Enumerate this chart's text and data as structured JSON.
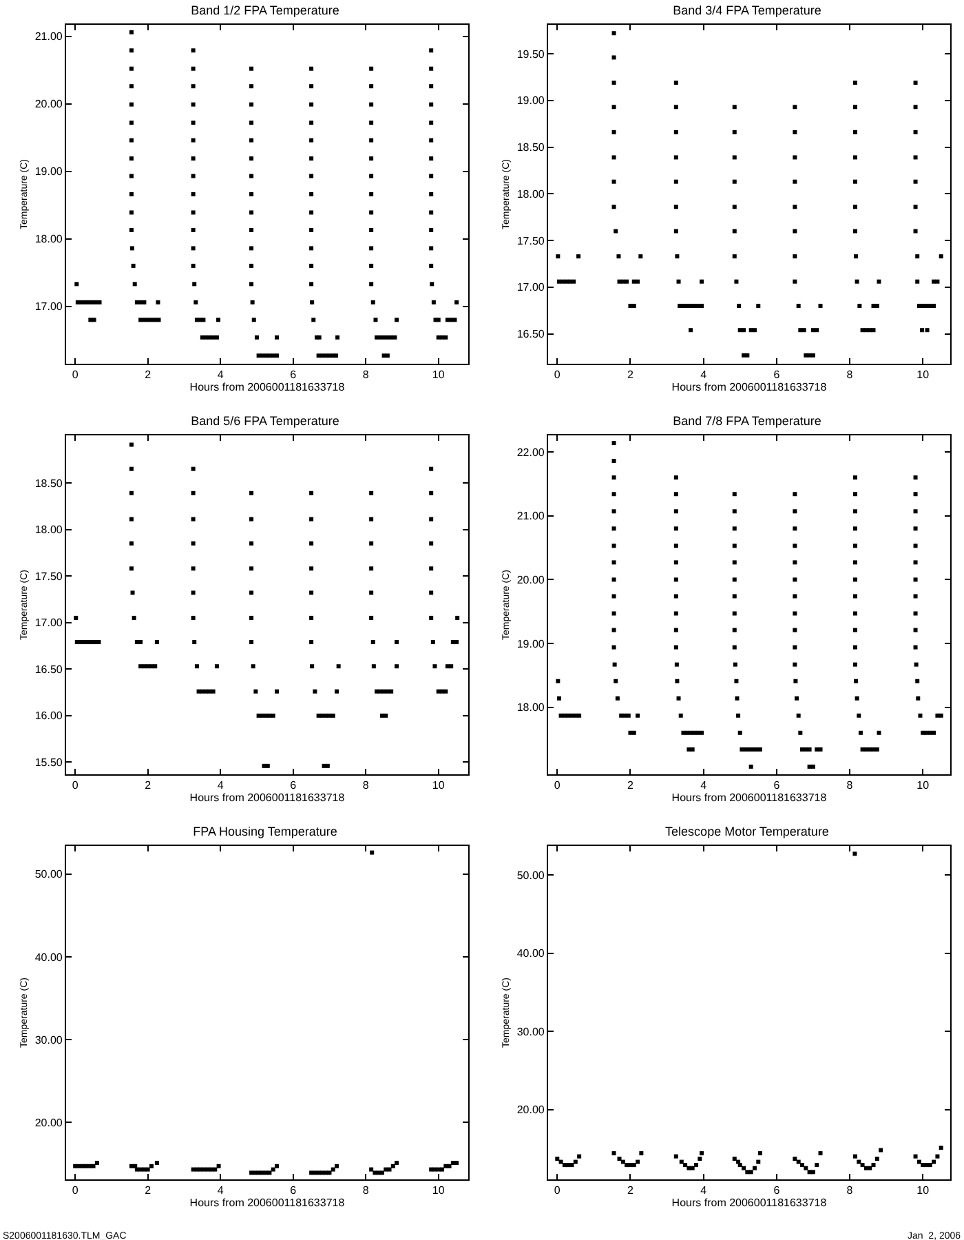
{
  "chart_data": [
    {
      "type": "scatter",
      "title": "Band 1/2 FPA Temperature",
      "xlabel": "Hours from 2006001181633718",
      "ylabel": "Temperature (C)",
      "marker": "square",
      "xlim": [
        -0.25,
        10.82
      ],
      "ylim": [
        16.15,
        21.17
      ],
      "xticks": [
        0,
        2,
        4,
        6,
        8,
        10
      ],
      "yticks": [
        {
          "value": 17,
          "label": "17.00"
        },
        {
          "value": 18,
          "label": "18.00"
        },
        {
          "value": 19,
          "label": "19.00"
        },
        {
          "value": 20,
          "label": "20.00"
        },
        {
          "value": 21,
          "label": "21.00"
        }
      ],
      "series": [
        {
          "color": "#000000",
          "x": [
            0.04,
            0.07,
            0.17,
            0.27,
            0.37,
            0.47,
            0.57,
            0.67,
            0.42,
            0.52
          ],
          "values": [
            17.33,
            17.06,
            17.06,
            17.06,
            17.06,
            17.06,
            17.06,
            17.06,
            16.8,
            16.8
          ]
        },
        {
          "color": "#000000",
          "x": [
            1.55,
            1.55,
            1.55,
            1.55,
            1.55,
            1.55,
            1.55,
            1.55,
            1.55,
            1.55,
            1.55,
            1.55,
            1.57,
            1.6,
            1.64,
            1.7,
            1.8,
            1.9,
            2.28,
            1.8,
            1.9,
            2.0,
            2.1,
            2.2,
            2.3
          ],
          "values": [
            21.06,
            20.79,
            20.52,
            20.26,
            19.99,
            19.72,
            19.46,
            19.19,
            18.93,
            18.66,
            18.39,
            18.13,
            17.86,
            17.6,
            17.33,
            17.06,
            17.06,
            17.06,
            17.06,
            16.8,
            16.8,
            16.8,
            16.8,
            16.8,
            16.8
          ]
        },
        {
          "color": "#000000",
          "x": [
            3.25,
            3.25,
            3.25,
            3.25,
            3.25,
            3.25,
            3.25,
            3.25,
            3.25,
            3.25,
            3.25,
            3.25,
            3.25,
            3.28,
            3.32,
            3.35,
            3.45,
            3.53,
            3.94,
            3.5,
            3.6,
            3.7,
            3.8,
            3.9
          ],
          "values": [
            20.79,
            20.52,
            20.26,
            19.99,
            19.72,
            19.46,
            19.19,
            18.93,
            18.66,
            18.39,
            18.13,
            17.86,
            17.6,
            17.33,
            17.06,
            16.8,
            16.8,
            16.8,
            16.8,
            16.54,
            16.54,
            16.54,
            16.54,
            16.54
          ]
        },
        {
          "color": "#000000",
          "x": [
            4.85,
            4.85,
            4.85,
            4.85,
            4.85,
            4.85,
            4.85,
            4.85,
            4.85,
            4.85,
            4.85,
            4.85,
            4.85,
            4.88,
            4.92,
            5.0,
            5.55,
            5.05,
            5.15,
            5.25,
            5.35,
            5.45,
            5.55
          ],
          "values": [
            20.52,
            20.26,
            19.99,
            19.72,
            19.46,
            19.19,
            18.93,
            18.66,
            18.39,
            18.13,
            17.86,
            17.6,
            17.33,
            17.06,
            16.8,
            16.54,
            16.54,
            16.27,
            16.27,
            16.27,
            16.27,
            16.27,
            16.27
          ]
        },
        {
          "color": "#000000",
          "x": [
            6.5,
            6.5,
            6.5,
            6.5,
            6.5,
            6.5,
            6.5,
            6.5,
            6.5,
            6.5,
            6.5,
            6.5,
            6.5,
            6.52,
            6.56,
            6.65,
            6.72,
            7.22,
            6.7,
            6.8,
            6.9,
            7.0,
            7.1,
            7.18
          ],
          "values": [
            20.52,
            20.26,
            19.99,
            19.72,
            19.46,
            19.19,
            18.93,
            18.66,
            18.39,
            18.13,
            17.86,
            17.6,
            17.33,
            17.06,
            16.8,
            16.54,
            16.54,
            16.54,
            16.27,
            16.27,
            16.27,
            16.27,
            16.27,
            16.27
          ]
        },
        {
          "color": "#000000",
          "x": [
            8.15,
            8.15,
            8.15,
            8.15,
            8.15,
            8.15,
            8.15,
            8.15,
            8.15,
            8.15,
            8.15,
            8.15,
            8.15,
            8.2,
            8.27,
            8.3,
            8.4,
            8.5,
            8.6,
            8.7,
            8.8,
            8.5,
            8.6,
            8.85
          ],
          "values": [
            20.52,
            20.26,
            19.99,
            19.72,
            19.46,
            19.19,
            18.93,
            18.66,
            18.39,
            18.13,
            17.86,
            17.6,
            17.33,
            17.06,
            16.8,
            16.54,
            16.54,
            16.54,
            16.54,
            16.54,
            16.54,
            16.27,
            16.27,
            16.8
          ]
        },
        {
          "color": "#000000",
          "x": [
            9.8,
            9.8,
            9.8,
            9.8,
            9.8,
            9.8,
            9.8,
            9.8,
            9.8,
            9.8,
            9.8,
            9.8,
            9.8,
            9.82,
            9.87,
            9.92,
            10.0,
            10.0,
            10.1,
            10.2,
            10.25,
            10.35,
            10.45,
            10.5
          ],
          "values": [
            20.79,
            20.52,
            20.26,
            19.99,
            19.72,
            19.46,
            19.19,
            18.93,
            18.66,
            18.39,
            18.13,
            17.86,
            17.6,
            17.33,
            17.06,
            16.8,
            16.8,
            16.54,
            16.54,
            16.54,
            16.8,
            16.8,
            16.8,
            17.06
          ]
        }
      ]
    },
    {
      "type": "scatter",
      "title": "Band 3/4 FPA Temperature",
      "xlabel": "Hours from 2006001181633718",
      "ylabel": "Temperature (C)",
      "marker": "square",
      "xlim": [
        -0.25,
        10.75
      ],
      "ylim": [
        16.18,
        19.81
      ],
      "xticks": [
        0,
        2,
        4,
        6,
        8,
        10
      ],
      "yticks": [
        {
          "value": 16.5,
          "label": "16.50"
        },
        {
          "value": 17,
          "label": "17.00"
        },
        {
          "value": 17.5,
          "label": "17.50"
        },
        {
          "value": 18,
          "label": "18.00"
        },
        {
          "value": 18.5,
          "label": "18.50"
        },
        {
          "value": 19,
          "label": "19.00"
        },
        {
          "value": 19.5,
          "label": "19.50"
        }
      ],
      "series": [
        {
          "color": "#000000",
          "x": [
            0.02,
            0.58,
            0.05,
            0.15,
            0.25,
            0.35,
            0.45
          ],
          "values": [
            17.33,
            17.33,
            17.06,
            17.06,
            17.06,
            17.06,
            17.06
          ]
        },
        {
          "color": "#000000",
          "x": [
            1.55,
            1.55,
            1.55,
            1.55,
            1.55,
            1.55,
            1.55,
            1.55,
            1.6,
            1.68,
            1.7,
            1.8,
            1.9,
            2.1,
            2.2,
            2.0,
            2.1,
            2.28
          ],
          "values": [
            19.72,
            19.46,
            19.19,
            18.93,
            18.66,
            18.39,
            18.13,
            17.86,
            17.6,
            17.33,
            17.06,
            17.06,
            17.06,
            17.06,
            17.06,
            16.8,
            16.8,
            17.33
          ]
        },
        {
          "color": "#000000",
          "x": [
            3.25,
            3.25,
            3.25,
            3.25,
            3.25,
            3.25,
            3.25,
            3.28,
            3.32,
            3.35,
            3.45,
            3.55,
            3.65,
            3.75,
            3.85,
            3.95,
            3.65,
            3.95
          ],
          "values": [
            19.19,
            18.93,
            18.66,
            18.39,
            18.13,
            17.86,
            17.6,
            17.33,
            17.06,
            16.8,
            16.8,
            16.8,
            16.8,
            16.8,
            16.8,
            16.8,
            16.54,
            17.06
          ]
        },
        {
          "color": "#000000",
          "x": [
            4.85,
            4.85,
            4.85,
            4.85,
            4.85,
            4.85,
            4.85,
            4.9,
            4.97,
            5.0,
            5.1,
            5.1,
            5.2,
            5.3,
            5.4,
            5.5
          ],
          "values": [
            18.93,
            18.66,
            18.39,
            18.13,
            17.86,
            17.6,
            17.33,
            17.06,
            16.8,
            16.54,
            16.54,
            16.27,
            16.27,
            16.54,
            16.54,
            16.8
          ]
        },
        {
          "color": "#000000",
          "x": [
            6.5,
            6.5,
            6.5,
            6.5,
            6.5,
            6.5,
            6.5,
            6.5,
            6.6,
            6.65,
            6.75,
            6.8,
            6.9,
            7.0,
            7.0,
            7.1,
            7.2
          ],
          "values": [
            18.93,
            18.66,
            18.39,
            18.13,
            17.86,
            17.6,
            17.33,
            17.06,
            16.8,
            16.54,
            16.54,
            16.27,
            16.27,
            16.27,
            16.54,
            16.54,
            16.8
          ]
        },
        {
          "color": "#000000",
          "x": [
            8.15,
            8.15,
            8.15,
            8.15,
            8.15,
            8.15,
            8.15,
            8.17,
            8.2,
            8.27,
            8.35,
            8.45,
            8.55,
            8.65,
            8.65,
            8.75,
            8.8
          ],
          "values": [
            19.19,
            18.93,
            18.66,
            18.39,
            18.13,
            17.86,
            17.6,
            17.33,
            17.06,
            16.8,
            16.54,
            16.54,
            16.54,
            16.54,
            16.8,
            16.8,
            17.06
          ]
        },
        {
          "color": "#000000",
          "x": [
            9.8,
            9.8,
            9.8,
            9.8,
            9.8,
            9.8,
            9.8,
            9.85,
            9.85,
            9.9,
            10.0,
            10.1,
            10.2,
            10.3,
            9.98,
            10.12,
            10.3,
            10.4,
            10.5
          ],
          "values": [
            19.19,
            18.93,
            18.66,
            18.39,
            18.13,
            17.86,
            17.6,
            17.33,
            17.06,
            16.8,
            16.8,
            16.8,
            16.8,
            16.8,
            16.54,
            16.54,
            17.06,
            17.06,
            17.33
          ]
        }
      ]
    },
    {
      "type": "scatter",
      "title": "Band 5/6 FPA Temperature",
      "xlabel": "Hours from 2006001181633718",
      "ylabel": "Temperature (C)",
      "marker": "square",
      "xlim": [
        -0.25,
        10.82
      ],
      "ylim": [
        15.37,
        19.01
      ],
      "xticks": [
        0,
        2,
        4,
        6,
        8,
        10
      ],
      "yticks": [
        {
          "value": 15.5,
          "label": "15.50"
        },
        {
          "value": 16,
          "label": "16.00"
        },
        {
          "value": 16.5,
          "label": "16.50"
        },
        {
          "value": 17,
          "label": "17.00"
        },
        {
          "value": 17.5,
          "label": "17.50"
        },
        {
          "value": 18,
          "label": "18.00"
        },
        {
          "value": 18.5,
          "label": "18.50"
        }
      ],
      "series": [
        {
          "color": "#000000",
          "x": [
            0.02,
            0.05,
            0.15,
            0.25,
            0.35,
            0.45,
            0.55,
            0.65
          ],
          "values": [
            17.05,
            16.79,
            16.79,
            16.79,
            16.79,
            16.79,
            16.79,
            16.79
          ]
        },
        {
          "color": "#000000",
          "x": [
            1.55,
            1.55,
            1.55,
            1.55,
            1.55,
            1.55,
            1.58,
            1.62,
            1.7,
            1.8,
            2.25,
            1.8,
            1.9,
            2.0,
            2.1,
            2.2
          ],
          "values": [
            18.91,
            18.65,
            18.39,
            18.11,
            17.85,
            17.58,
            17.32,
            17.05,
            16.79,
            16.79,
            16.79,
            16.53,
            16.53,
            16.53,
            16.53,
            16.53
          ]
        },
        {
          "color": "#000000",
          "x": [
            3.25,
            3.25,
            3.25,
            3.25,
            3.25,
            3.25,
            3.25,
            3.28,
            3.35,
            3.9,
            3.4,
            3.5,
            3.6,
            3.7,
            3.8
          ],
          "values": [
            18.65,
            18.39,
            18.11,
            17.85,
            17.58,
            17.32,
            17.05,
            16.79,
            16.53,
            16.53,
            16.26,
            16.26,
            16.26,
            16.26,
            16.26
          ]
        },
        {
          "color": "#000000",
          "x": [
            4.85,
            4.85,
            4.85,
            4.85,
            4.85,
            4.85,
            4.85,
            4.9,
            4.97,
            5.55,
            5.05,
            5.15,
            5.25,
            5.35,
            5.45,
            5.2,
            5.3
          ],
          "values": [
            18.39,
            18.11,
            17.85,
            17.58,
            17.32,
            17.05,
            16.79,
            16.53,
            16.26,
            16.26,
            16.0,
            16.0,
            16.0,
            16.0,
            16.0,
            15.46,
            15.46
          ]
        },
        {
          "color": "#000000",
          "x": [
            6.5,
            6.5,
            6.5,
            6.5,
            6.5,
            6.5,
            6.5,
            6.52,
            6.6,
            7.2,
            6.7,
            6.8,
            6.9,
            7.0,
            7.1,
            6.85,
            6.95,
            7.25
          ],
          "values": [
            18.39,
            18.11,
            17.85,
            17.58,
            17.32,
            17.05,
            16.79,
            16.53,
            16.26,
            16.26,
            16.0,
            16.0,
            16.0,
            16.0,
            16.0,
            15.46,
            15.46,
            16.53
          ]
        },
        {
          "color": "#000000",
          "x": [
            8.15,
            8.15,
            8.15,
            8.15,
            8.15,
            8.15,
            8.2,
            8.22,
            8.85,
            8.3,
            8.4,
            8.5,
            8.6,
            8.7,
            8.45,
            8.55,
            8.85
          ],
          "values": [
            18.39,
            18.11,
            17.85,
            17.58,
            17.32,
            17.05,
            16.79,
            16.53,
            16.53,
            16.26,
            16.26,
            16.26,
            16.26,
            16.26,
            16.0,
            16.0,
            16.79
          ]
        },
        {
          "color": "#000000",
          "x": [
            9.8,
            9.8,
            9.8,
            9.8,
            9.8,
            9.8,
            9.8,
            9.85,
            9.9,
            10.25,
            10.35,
            10.0,
            10.1,
            10.2,
            10.4,
            10.5,
            10.52
          ],
          "values": [
            18.65,
            18.39,
            18.11,
            17.85,
            17.58,
            17.32,
            17.05,
            16.79,
            16.53,
            16.53,
            16.53,
            16.26,
            16.26,
            16.26,
            16.79,
            16.79,
            17.05
          ]
        }
      ]
    },
    {
      "type": "scatter",
      "title": "Band 7/8 FPA Temperature",
      "xlabel": "Hours from 2006001181633718",
      "ylabel": "Temperature (C)",
      "marker": "square",
      "xlim": [
        -0.25,
        10.75
      ],
      "ylim": [
        16.95,
        22.26
      ],
      "xticks": [
        0,
        2,
        4,
        6,
        8,
        10
      ],
      "yticks": [
        {
          "value": 18,
          "label": "18.00"
        },
        {
          "value": 19,
          "label": "19.00"
        },
        {
          "value": 20,
          "label": "20.00"
        },
        {
          "value": 21,
          "label": "21.00"
        },
        {
          "value": 22,
          "label": "22.00"
        }
      ],
      "series": [
        {
          "color": "#000000",
          "x": [
            0.02,
            0.05,
            0.1,
            0.2,
            0.3,
            0.4,
            0.5,
            0.6
          ],
          "values": [
            18.41,
            18.14,
            17.87,
            17.87,
            17.87,
            17.87,
            17.87,
            17.87
          ]
        },
        {
          "color": "#000000",
          "x": [
            1.55,
            1.55,
            1.55,
            1.55,
            1.55,
            1.55,
            1.55,
            1.55,
            1.55,
            1.55,
            1.55,
            1.55,
            1.55,
            1.57,
            1.6,
            1.65,
            1.75,
            1.85,
            1.95,
            2.2,
            2.0,
            2.1
          ],
          "values": [
            22.14,
            21.86,
            21.6,
            21.34,
            21.07,
            20.8,
            20.53,
            20.27,
            20.0,
            19.74,
            19.47,
            19.21,
            18.94,
            18.67,
            18.41,
            18.14,
            17.87,
            17.87,
            17.87,
            17.87,
            17.6,
            17.6
          ]
        },
        {
          "color": "#000000",
          "x": [
            3.25,
            3.25,
            3.25,
            3.25,
            3.25,
            3.25,
            3.25,
            3.25,
            3.25,
            3.25,
            3.25,
            3.27,
            3.28,
            3.32,
            3.38,
            3.45,
            3.55,
            3.65,
            3.75,
            3.85,
            3.6,
            3.7,
            3.95
          ],
          "values": [
            21.6,
            21.34,
            21.07,
            20.8,
            20.53,
            20.27,
            20.0,
            19.74,
            19.47,
            19.21,
            18.94,
            18.67,
            18.41,
            18.14,
            17.87,
            17.6,
            17.6,
            17.6,
            17.6,
            17.6,
            17.34,
            17.34,
            17.6
          ]
        },
        {
          "color": "#000000",
          "x": [
            4.85,
            4.85,
            4.85,
            4.85,
            4.85,
            4.85,
            4.85,
            4.85,
            4.85,
            4.85,
            4.87,
            4.9,
            4.92,
            4.95,
            5.0,
            5.05,
            5.15,
            5.25,
            5.35,
            5.45,
            5.55,
            5.3
          ],
          "values": [
            21.34,
            21.07,
            20.8,
            20.53,
            20.27,
            20.0,
            19.74,
            19.47,
            19.21,
            18.94,
            18.67,
            18.41,
            18.14,
            17.87,
            17.6,
            17.34,
            17.34,
            17.34,
            17.34,
            17.34,
            17.34,
            17.07
          ]
        },
        {
          "color": "#000000",
          "x": [
            6.5,
            6.5,
            6.5,
            6.5,
            6.5,
            6.5,
            6.5,
            6.5,
            6.5,
            6.5,
            6.5,
            6.52,
            6.55,
            6.6,
            6.65,
            6.7,
            6.8,
            6.9,
            7.1,
            7.2,
            6.9,
            7.0
          ],
          "values": [
            21.34,
            21.07,
            20.8,
            20.53,
            20.27,
            20.0,
            19.74,
            19.47,
            19.21,
            18.94,
            18.67,
            18.41,
            18.14,
            17.87,
            17.6,
            17.34,
            17.34,
            17.34,
            17.34,
            17.34,
            17.07,
            17.07
          ]
        },
        {
          "color": "#000000",
          "x": [
            8.15,
            8.15,
            8.15,
            8.15,
            8.15,
            8.15,
            8.15,
            8.15,
            8.15,
            8.15,
            8.15,
            8.15,
            8.17,
            8.2,
            8.25,
            8.3,
            8.8,
            8.35,
            8.45,
            8.55,
            8.65,
            8.75
          ],
          "values": [
            21.6,
            21.34,
            21.07,
            20.8,
            20.53,
            20.27,
            20.0,
            19.74,
            19.47,
            19.21,
            18.94,
            18.67,
            18.41,
            18.14,
            17.87,
            17.6,
            17.6,
            17.34,
            17.34,
            17.34,
            17.34,
            17.34
          ]
        },
        {
          "color": "#000000",
          "x": [
            9.8,
            9.8,
            9.8,
            9.8,
            9.8,
            9.8,
            9.8,
            9.8,
            9.8,
            9.8,
            9.8,
            9.82,
            9.85,
            9.87,
            9.93,
            10.4,
            10.5,
            10.0,
            10.1,
            10.2,
            10.3
          ],
          "values": [
            21.6,
            21.34,
            21.07,
            20.8,
            20.53,
            20.27,
            20.0,
            19.74,
            19.47,
            19.21,
            18.94,
            18.67,
            18.41,
            18.14,
            17.87,
            17.87,
            17.87,
            17.6,
            17.6,
            17.6,
            17.6
          ]
        }
      ]
    },
    {
      "type": "scatter",
      "title": "FPA Housing Temperature",
      "xlabel": "Hours from 2006001181633718",
      "ylabel": "Temperature (C)",
      "marker": "square",
      "xlim": [
        -0.25,
        10.82
      ],
      "ylim": [
        13.1,
        53.4
      ],
      "xticks": [
        0,
        2,
        4,
        6,
        8,
        10
      ],
      "yticks": [
        {
          "value": 20,
          "label": "20.00"
        },
        {
          "value": 30,
          "label": "30.00"
        },
        {
          "value": 40,
          "label": "40.00"
        },
        {
          "value": 50,
          "label": "50.00"
        }
      ],
      "annotations": [
        "S2006001181630.TLM_GAC"
      ],
      "series": [
        {
          "color": "#000000",
          "x": [
            0,
            0.1,
            0.2,
            0.3,
            0.4,
            0.5,
            0.6
          ],
          "values": [
            14.7,
            14.7,
            14.7,
            14.7,
            14.7,
            14.7,
            15.1
          ]
        },
        {
          "color": "#000000",
          "x": [
            1.55,
            1.65,
            1.7,
            1.8,
            1.9,
            2.0,
            2.1,
            2.25
          ],
          "values": [
            14.7,
            14.7,
            14.3,
            14.3,
            14.3,
            14.3,
            14.7,
            15.1
          ]
        },
        {
          "color": "#000000",
          "x": [
            3.25,
            3.35,
            3.45,
            3.55,
            3.65,
            3.75,
            3.85,
            3.95
          ],
          "values": [
            14.3,
            14.3,
            14.3,
            14.3,
            14.3,
            14.3,
            14.3,
            14.7
          ]
        },
        {
          "color": "#000000",
          "x": [
            4.85,
            4.95,
            5.05,
            5.15,
            5.25,
            5.35,
            5.45,
            5.55
          ],
          "values": [
            13.9,
            13.9,
            13.9,
            13.9,
            13.9,
            13.9,
            14.3,
            14.7
          ]
        },
        {
          "color": "#000000",
          "x": [
            6.5,
            6.6,
            6.7,
            6.8,
            6.9,
            7.0,
            7.1,
            7.2
          ],
          "values": [
            13.9,
            13.9,
            13.9,
            13.9,
            13.9,
            13.9,
            14.3,
            14.7
          ]
        },
        {
          "color": "#000000",
          "x": [
            8.17,
            8.15,
            8.25,
            8.35,
            8.45,
            8.55,
            8.65,
            8.75,
            8.85
          ],
          "values": [
            52.6,
            14.3,
            13.9,
            13.9,
            13.9,
            14.3,
            14.3,
            14.7,
            15.1
          ]
        },
        {
          "color": "#000000",
          "x": [
            9.8,
            9.9,
            10.0,
            10.1,
            10.2,
            10.3,
            10.4,
            10.5
          ],
          "values": [
            14.3,
            14.3,
            14.3,
            14.3,
            14.7,
            14.7,
            15.1,
            15.1
          ]
        }
      ]
    },
    {
      "type": "scatter",
      "title": "Telescope Motor Temperature",
      "xlabel": "Hours from 2006001181633718",
      "ylabel": "Temperature (C)",
      "marker": "square",
      "xlim": [
        -0.25,
        10.75
      ],
      "ylim": [
        11.06,
        53.7
      ],
      "xticks": [
        0,
        2,
        4,
        6,
        8,
        10
      ],
      "yticks": [
        {
          "value": 20,
          "label": "20.00"
        },
        {
          "value": 30,
          "label": "30.00"
        },
        {
          "value": 40,
          "label": "40.00"
        },
        {
          "value": 50,
          "label": "50.00"
        }
      ],
      "annotations": [
        "Jan  2, 2006"
      ],
      "series": [
        {
          "color": "#000000",
          "x": [
            0,
            0.1,
            0.2,
            0.3,
            0.4,
            0.5,
            0.6
          ],
          "values": [
            13.7,
            13.3,
            12.9,
            12.9,
            12.9,
            13.3,
            14.0
          ]
        },
        {
          "color": "#000000",
          "x": [
            1.55,
            1.7,
            1.8,
            1.9,
            2.0,
            2.1,
            2.2,
            2.3
          ],
          "values": [
            14.4,
            13.7,
            13.3,
            12.9,
            12.9,
            12.9,
            13.3,
            14.4
          ]
        },
        {
          "color": "#000000",
          "x": [
            3.25,
            3.4,
            3.5,
            3.6,
            3.7,
            3.8,
            3.9,
            3.95
          ],
          "values": [
            14.0,
            13.3,
            12.9,
            12.5,
            12.5,
            12.9,
            13.7,
            14.4
          ]
        },
        {
          "color": "#000000",
          "x": [
            4.85,
            4.95,
            5.0,
            5.1,
            5.2,
            5.3,
            5.4,
            5.5,
            5.55
          ],
          "values": [
            13.7,
            13.3,
            12.9,
            12.5,
            12.0,
            12.0,
            12.5,
            13.3,
            14.4
          ]
        },
        {
          "color": "#000000",
          "x": [
            6.5,
            6.6,
            6.7,
            6.8,
            6.9,
            7.0,
            7.1,
            7.2
          ],
          "values": [
            13.7,
            13.3,
            12.9,
            12.5,
            12.0,
            12.0,
            12.9,
            14.4
          ]
        },
        {
          "color": "#000000",
          "x": [
            8.14,
            8.15,
            8.25,
            8.35,
            8.45,
            8.55,
            8.65,
            8.75,
            8.85
          ],
          "values": [
            52.7,
            14.0,
            13.3,
            12.9,
            12.5,
            12.5,
            12.9,
            13.7,
            14.8
          ]
        },
        {
          "color": "#000000",
          "x": [
            9.8,
            9.9,
            10.0,
            10.1,
            10.2,
            10.3,
            10.4,
            10.5
          ],
          "values": [
            14.0,
            13.3,
            12.9,
            12.9,
            12.9,
            13.3,
            14.0,
            15.1
          ]
        }
      ]
    }
  ]
}
